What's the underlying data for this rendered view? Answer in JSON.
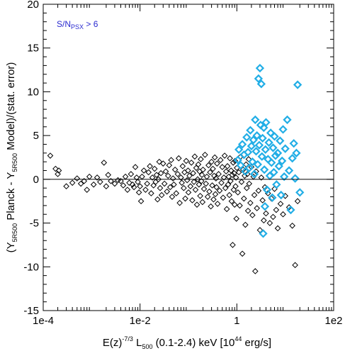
{
  "chart_data": {
    "type": "scatter",
    "title": "",
    "xlabel": {
      "prefix": "E(z)",
      "exponent": "-7/3",
      "symbol": " L",
      "subscript": "500",
      "mid": " (0.1-2.4) keV [10",
      "unit_exponent": "44",
      "suffix": " erg/s]"
    },
    "ylabel": {
      "open": "(Y",
      "sub1": "5R500",
      "mid": " Planck - Y",
      "sub2": "5R500",
      "close": " Model)/(stat. error)"
    },
    "x_scale": "log",
    "xlim": [
      0.0001,
      100
    ],
    "ylim": [
      -15,
      20
    ],
    "x_ticks": [
      {
        "value": 0.0001,
        "label": "1e-4"
      },
      {
        "value": 0.01,
        "label": "1e-2"
      },
      {
        "value": 1,
        "label": "1"
      },
      {
        "value": 100,
        "label": "1e2"
      }
    ],
    "y_ticks": [
      {
        "value": -15,
        "label": "-15"
      },
      {
        "value": -10,
        "label": "-10"
      },
      {
        "value": -5,
        "label": "-5"
      },
      {
        "value": 0,
        "label": "0"
      },
      {
        "value": 5,
        "label": "5"
      },
      {
        "value": 10,
        "label": "10"
      },
      {
        "value": 15,
        "label": "15"
      },
      {
        "value": 20,
        "label": "20"
      }
    ],
    "reference_line_y": 0,
    "annotation": {
      "text": "S/N",
      "subscript": "PSX",
      "suffix": " > 6",
      "color": "#2a2ad0",
      "placement": "top-left"
    },
    "marker": "diamond",
    "series": [
      {
        "color": "#000000",
        "points": [
          [
            0.00014,
            2.7
          ],
          [
            0.00018,
            1.2
          ],
          [
            0.0002,
            0.6
          ],
          [
            0.00021,
            1.0
          ],
          [
            0.0003,
            -0.8
          ],
          [
            0.0004,
            -0.4
          ],
          [
            0.0005,
            0.1
          ],
          [
            0.0006,
            -0.5
          ],
          [
            0.0007,
            -0.2
          ],
          [
            0.0008,
            -1.2
          ],
          [
            0.0009,
            0.3
          ],
          [
            0.0011,
            -0.6
          ],
          [
            0.0013,
            0.2
          ],
          [
            0.0015,
            -0.3
          ],
          [
            0.0018,
            1.9
          ],
          [
            0.002,
            -0.8
          ],
          [
            0.0022,
            0.5
          ],
          [
            0.0025,
            -0.2
          ],
          [
            0.003,
            -0.5
          ],
          [
            0.0035,
            -0.1
          ],
          [
            0.004,
            -0.2
          ],
          [
            0.0045,
            -0.7
          ],
          [
            0.005,
            0.3
          ],
          [
            0.0055,
            -1.2
          ],
          [
            0.006,
            -0.4
          ],
          [
            0.0065,
            0.6
          ],
          [
            0.007,
            -0.6
          ],
          [
            0.0075,
            -0.9
          ],
          [
            0.008,
            1.4
          ],
          [
            0.0085,
            0.2
          ],
          [
            0.009,
            -0.3
          ],
          [
            0.0095,
            -1.5
          ],
          [
            0.01,
            -0.8
          ],
          [
            0.0105,
            -2.5
          ],
          [
            0.011,
            0.3
          ],
          [
            0.012,
            1.0
          ],
          [
            0.013,
            -1.2
          ],
          [
            0.014,
            -0.5
          ],
          [
            0.015,
            0.8
          ],
          [
            0.016,
            1.5
          ],
          [
            0.017,
            -1.6
          ],
          [
            0.018,
            0.2
          ],
          [
            0.019,
            -0.7
          ],
          [
            0.02,
            1.2
          ],
          [
            0.021,
            -0.3
          ],
          [
            0.022,
            0.5
          ],
          [
            0.023,
            -2.3
          ],
          [
            0.024,
            0.0
          ],
          [
            0.025,
            2.0
          ],
          [
            0.026,
            -1.0
          ],
          [
            0.027,
            0.7
          ],
          [
            0.028,
            -1.8
          ],
          [
            0.03,
            1.8
          ],
          [
            0.032,
            -0.5
          ],
          [
            0.034,
            0.9
          ],
          [
            0.036,
            -1.4
          ],
          [
            0.038,
            0.4
          ],
          [
            0.04,
            1.6
          ],
          [
            0.042,
            -0.9
          ],
          [
            0.044,
            2.2
          ],
          [
            0.046,
            -2.0
          ],
          [
            0.048,
            0.1
          ],
          [
            0.05,
            -0.6
          ],
          [
            0.053,
            1.1
          ],
          [
            0.056,
            -1.6
          ],
          [
            0.06,
            0.6
          ],
          [
            0.063,
            2.4
          ],
          [
            0.066,
            -2.7
          ],
          [
            0.07,
            0.2
          ],
          [
            0.073,
            -0.4
          ],
          [
            0.076,
            1.5
          ],
          [
            0.08,
            -1.0
          ],
          [
            0.083,
            0.8
          ],
          [
            0.086,
            -2.2
          ],
          [
            0.09,
            2.1
          ],
          [
            0.094,
            -0.1
          ],
          [
            0.098,
            1.0
          ],
          [
            0.1,
            -1.5
          ],
          [
            0.105,
            0.4
          ],
          [
            0.11,
            -0.8
          ],
          [
            0.115,
            1.9
          ],
          [
            0.12,
            -2.4
          ],
          [
            0.125,
            0.7
          ],
          [
            0.13,
            -0.3
          ],
          [
            0.135,
            2.6
          ],
          [
            0.14,
            -1.2
          ],
          [
            0.145,
            1.3
          ],
          [
            0.15,
            -2.9
          ],
          [
            0.155,
            0.0
          ],
          [
            0.16,
            1.7
          ],
          [
            0.165,
            -0.6
          ],
          [
            0.17,
            0.9
          ],
          [
            0.175,
            -1.9
          ],
          [
            0.18,
            2.3
          ],
          [
            0.185,
            -0.2
          ],
          [
            0.19,
            0.5
          ],
          [
            0.195,
            -2.6
          ],
          [
            0.2,
            1.1
          ],
          [
            0.21,
            -1.1
          ],
          [
            0.22,
            2.8
          ],
          [
            0.23,
            -0.5
          ],
          [
            0.24,
            0.3
          ],
          [
            0.25,
            -2.0
          ],
          [
            0.26,
            1.6
          ],
          [
            0.27,
            -1.4
          ],
          [
            0.28,
            0.8
          ],
          [
            0.29,
            -3.1
          ],
          [
            0.3,
            2.0
          ],
          [
            0.31,
            -0.7
          ],
          [
            0.32,
            1.2
          ],
          [
            0.33,
            -2.3
          ],
          [
            0.34,
            0.4
          ],
          [
            0.35,
            2.5
          ],
          [
            0.36,
            -1.7
          ],
          [
            0.37,
            0.1
          ],
          [
            0.38,
            -0.9
          ],
          [
            0.39,
            1.8
          ],
          [
            0.4,
            -2.8
          ],
          [
            0.42,
            0.6
          ],
          [
            0.44,
            -1.3
          ],
          [
            0.46,
            2.2
          ],
          [
            0.48,
            -0.4
          ],
          [
            0.5,
            1.4
          ],
          [
            0.52,
            -2.1
          ],
          [
            0.54,
            0.2
          ],
          [
            0.56,
            2.7
          ],
          [
            0.58,
            -1.0
          ],
          [
            0.6,
            0.9
          ],
          [
            0.62,
            -3.4
          ],
          [
            0.64,
            1.5
          ],
          [
            0.66,
            -0.6
          ],
          [
            0.68,
            0.3
          ],
          [
            0.7,
            -1.8
          ],
          [
            0.72,
            2.4
          ],
          [
            0.74,
            -0.2
          ],
          [
            0.76,
            1.0
          ],
          [
            0.78,
            -2.5
          ],
          [
            0.8,
            0.5
          ],
          [
            0.82,
            -7.5
          ],
          [
            0.84,
            1.9
          ],
          [
            0.86,
            -1.2
          ],
          [
            0.88,
            0.7
          ],
          [
            0.9,
            -2.9
          ],
          [
            0.92,
            2.1
          ],
          [
            0.94,
            -0.8
          ],
          [
            0.96,
            0.2
          ],
          [
            0.98,
            -4.5
          ],
          [
            1.0,
            1.3
          ],
          [
            1.05,
            -1.5
          ],
          [
            1.1,
            0.8
          ],
          [
            1.15,
            -3.0
          ],
          [
            1.2,
            2.6
          ],
          [
            1.25,
            -0.3
          ],
          [
            1.3,
            -8.5
          ],
          [
            1.35,
            1.1
          ],
          [
            1.4,
            -2.2
          ],
          [
            1.45,
            0.4
          ],
          [
            1.5,
            -5.2
          ],
          [
            1.55,
            1.7
          ],
          [
            1.6,
            -1.0
          ],
          [
            1.65,
            0.6
          ],
          [
            1.7,
            -3.6
          ],
          [
            1.75,
            2.3
          ],
          [
            1.8,
            -0.5
          ],
          [
            1.9,
            -2.7
          ],
          [
            2.0,
            1.4
          ],
          [
            2.1,
            -4.1
          ],
          [
            2.2,
            0.3
          ],
          [
            2.3,
            -1.8
          ],
          [
            2.4,
            -10.5
          ],
          [
            2.5,
            0.9
          ],
          [
            2.6,
            -3.3
          ],
          [
            2.8,
            -1.3
          ],
          [
            3.0,
            -5.8
          ],
          [
            3.2,
            0.2
          ],
          [
            3.4,
            -2.4
          ],
          [
            3.6,
            -4.7
          ],
          [
            3.8,
            -0.9
          ],
          [
            4.0,
            -3.9
          ],
          [
            4.4,
            -1.6
          ],
          [
            4.8,
            -5.0
          ],
          [
            5.2,
            -2.2
          ],
          [
            5.6,
            -4.3
          ],
          [
            6.0,
            -1.1
          ],
          [
            6.5,
            -3.5
          ],
          [
            7.0,
            -5.6
          ],
          [
            8.0,
            -2.8
          ],
          [
            9.0,
            -4.0
          ],
          [
            10.0,
            -1.9
          ],
          [
            12.0,
            -3.2
          ],
          [
            14.0,
            -5.3
          ],
          [
            16.0,
            -9.8
          ],
          [
            18.0,
            -2.5
          ]
        ]
      },
      {
        "color": "#22aee6",
        "points": [
          [
            1.05,
            2.2
          ],
          [
            1.1,
            3.4
          ],
          [
            1.2,
            1.6
          ],
          [
            1.3,
            4.0
          ],
          [
            1.4,
            2.8
          ],
          [
            1.5,
            0.9
          ],
          [
            1.6,
            4.8
          ],
          [
            1.7,
            3.1
          ],
          [
            1.8,
            1.3
          ],
          [
            1.9,
            5.6
          ],
          [
            2.0,
            3.8
          ],
          [
            2.1,
            2.0
          ],
          [
            2.2,
            4.5
          ],
          [
            2.3,
            0.6
          ],
          [
            2.4,
            6.8
          ],
          [
            2.5,
            3.2
          ],
          [
            2.6,
            5.0
          ],
          [
            2.7,
            1.7
          ],
          [
            2.8,
            11.5
          ],
          [
            2.9,
            3.9
          ],
          [
            3.0,
            12.7
          ],
          [
            3.1,
            6.2
          ],
          [
            3.2,
            10.9
          ],
          [
            3.3,
            2.6
          ],
          [
            3.4,
            4.7
          ],
          [
            3.5,
            -6.2
          ],
          [
            3.6,
            5.9
          ],
          [
            3.7,
            1.1
          ],
          [
            3.8,
            -3.1
          ],
          [
            3.9,
            3.4
          ],
          [
            4.0,
            6.5
          ],
          [
            4.2,
            -1.2
          ],
          [
            4.4,
            2.3
          ],
          [
            4.6,
            4.2
          ],
          [
            4.8,
            0.4
          ],
          [
            5.0,
            5.3
          ],
          [
            5.2,
            1.9
          ],
          [
            5.4,
            -2.1
          ],
          [
            5.6,
            3.6
          ],
          [
            5.8,
            0.8
          ],
          [
            6.0,
            4.9
          ],
          [
            6.3,
            2.7
          ],
          [
            6.6,
            -0.6
          ],
          [
            7.0,
            3.0
          ],
          [
            7.4,
            1.5
          ],
          [
            7.8,
            4.4
          ],
          [
            8.2,
            -1.8
          ],
          [
            8.6,
            2.1
          ],
          [
            9.0,
            5.7
          ],
          [
            9.5,
            0.3
          ],
          [
            10.0,
            3.5
          ],
          [
            11.0,
            6.8
          ],
          [
            12.0,
            1.0
          ],
          [
            13.0,
            -3.5
          ],
          [
            14.0,
            2.4
          ],
          [
            15.0,
            4.1
          ],
          [
            16.0,
            0.1
          ],
          [
            17.0,
            3.0
          ],
          [
            18.0,
            10.8
          ],
          [
            20.0,
            -1.5
          ]
        ]
      }
    ]
  }
}
